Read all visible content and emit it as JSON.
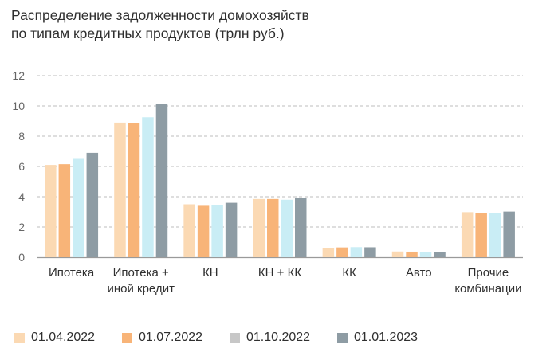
{
  "header": {
    "title_line1": "Распределение задолженности домохозяйств",
    "title_line2": "по типам кредитных продуктов (трлн руб.)"
  },
  "chart_data": {
    "type": "bar",
    "title": "Распределение задолженности домохозяйств по типам кредитных продуктов (трлн руб.)",
    "xlabel": "",
    "ylabel": "",
    "ylim": [
      0,
      12
    ],
    "yticks": [
      0,
      2,
      4,
      6,
      8,
      10,
      12
    ],
    "grid": true,
    "legend_position": "bottom",
    "categories": [
      [
        "Ипотека"
      ],
      [
        "Ипотека +",
        "иной кредит"
      ],
      [
        "КН"
      ],
      [
        "КН + КК"
      ],
      [
        "КК"
      ],
      [
        "Авто"
      ],
      [
        "Прочие",
        "комбинации"
      ]
    ],
    "series": [
      {
        "name": "01.04.2022",
        "color": "#FBD9B3",
        "values": [
          6.1,
          8.9,
          3.5,
          3.85,
          0.62,
          0.38,
          2.98
        ]
      },
      {
        "name": "01.07.2022",
        "color": "#F8B478",
        "values": [
          6.15,
          8.85,
          3.4,
          3.85,
          0.65,
          0.37,
          2.92
        ]
      },
      {
        "name": "01.10.2022",
        "color": "#C9EDF5",
        "values": [
          6.5,
          9.25,
          3.45,
          3.8,
          0.67,
          0.35,
          2.9
        ]
      },
      {
        "name": "01.01.2023",
        "color": "#8E9CA4",
        "values": [
          6.9,
          10.15,
          3.6,
          3.9,
          0.66,
          0.36,
          3.02
        ]
      }
    ],
    "legend_swatch_colors": [
      "#FBD9B3",
      "#F8B478",
      "#C7C7C7",
      "#8E9CA4"
    ]
  }
}
